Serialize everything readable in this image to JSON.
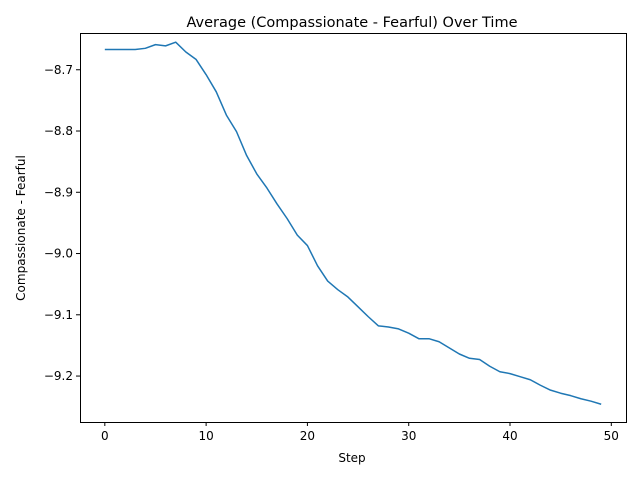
{
  "chart_data": {
    "type": "line",
    "title": "Average (Compassionate - Fearful) Over Time",
    "xlabel": "Step",
    "ylabel": "Compassionate - Fearful",
    "xlim": [
      -2.45,
      51.45
    ],
    "ylim": [
      -9.275,
      -8.64
    ],
    "xticks": [
      0,
      10,
      20,
      30,
      40,
      50
    ],
    "xtick_labels": [
      "0",
      "10",
      "20",
      "30",
      "40",
      "50"
    ],
    "yticks": [
      -8.7,
      -8.8,
      -8.9,
      -9.0,
      -9.1,
      -9.2
    ],
    "ytick_labels": [
      "−8.7",
      "−8.8",
      "−8.9",
      "−9.0",
      "−9.1",
      "−9.2"
    ],
    "grid": false,
    "series": [
      {
        "color": "#1f77b4",
        "x": [
          0,
          1,
          2,
          3,
          4,
          5,
          6,
          7,
          8,
          9,
          10,
          11,
          12,
          13,
          14,
          15,
          16,
          17,
          18,
          19,
          20,
          21,
          22,
          23,
          24,
          25,
          26,
          27,
          28,
          29,
          30,
          31,
          32,
          33,
          34,
          35,
          36,
          37,
          38,
          39,
          40,
          41,
          42,
          43,
          44,
          45,
          46,
          47,
          48,
          49
        ],
        "y": [
          -8.667,
          -8.667,
          -8.667,
          -8.667,
          -8.665,
          -8.659,
          -8.661,
          -8.655,
          -8.671,
          -8.683,
          -8.708,
          -8.736,
          -8.774,
          -8.801,
          -8.84,
          -8.87,
          -8.893,
          -8.919,
          -8.943,
          -8.97,
          -8.987,
          -9.02,
          -9.045,
          -9.059,
          -9.071,
          -9.087,
          -9.103,
          -9.118,
          -9.12,
          -9.123,
          -9.13,
          -9.139,
          -9.139,
          -9.144,
          -9.154,
          -9.164,
          -9.171,
          -9.173,
          -9.184,
          -9.193,
          -9.196,
          -9.201,
          -9.206,
          -9.215,
          -9.223,
          -9.228,
          -9.232,
          -9.237,
          -9.241,
          -9.246
        ]
      }
    ]
  }
}
